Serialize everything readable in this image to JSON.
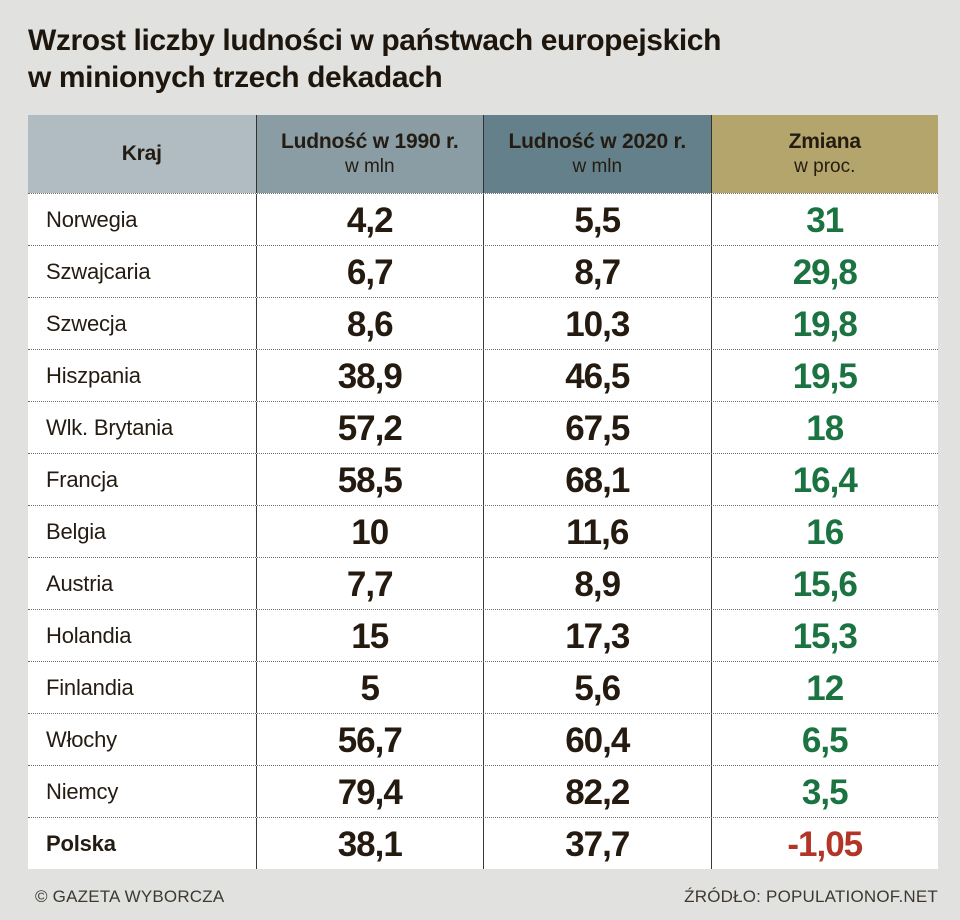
{
  "page": {
    "title_line1": "Wzrost liczby ludności w państwach europejskich",
    "title_line2": "w minionych trzech dekadach"
  },
  "colors": {
    "positive": "#1a7340",
    "negative": "#b23527",
    "header_text": "#241c12"
  },
  "table": {
    "columns": [
      {
        "label": "Kraj",
        "sub": "",
        "bg": "#b0bcc2"
      },
      {
        "label": "Ludność w 1990 r.",
        "sub": "w mln",
        "bg": "#8a9da4"
      },
      {
        "label": "Ludność w 2020 r.",
        "sub": "w mln",
        "bg": "#64808a"
      },
      {
        "label": "Zmiana",
        "sub": "w proc.",
        "bg": "#b4a56c"
      }
    ],
    "rows": [
      {
        "country": "Norwegia",
        "pop1990": "4,2",
        "pop2020": "5,5",
        "change": "31",
        "bold": false
      },
      {
        "country": "Szwajcaria",
        "pop1990": "6,7",
        "pop2020": "8,7",
        "change": "29,8",
        "bold": false
      },
      {
        "country": "Szwecja",
        "pop1990": "8,6",
        "pop2020": "10,3",
        "change": "19,8",
        "bold": false
      },
      {
        "country": "Hiszpania",
        "pop1990": "38,9",
        "pop2020": "46,5",
        "change": "19,5",
        "bold": false
      },
      {
        "country": "Wlk. Brytania",
        "pop1990": "57,2",
        "pop2020": "67,5",
        "change": "18",
        "bold": false
      },
      {
        "country": "Francja",
        "pop1990": "58,5",
        "pop2020": "68,1",
        "change": "16,4",
        "bold": false
      },
      {
        "country": "Belgia",
        "pop1990": "10",
        "pop2020": "11,6",
        "change": "16",
        "bold": false
      },
      {
        "country": "Austria",
        "pop1990": "7,7",
        "pop2020": "8,9",
        "change": "15,6",
        "bold": false
      },
      {
        "country": "Holandia",
        "pop1990": "15",
        "pop2020": "17,3",
        "change": "15,3",
        "bold": false
      },
      {
        "country": "Finlandia",
        "pop1990": "5",
        "pop2020": "5,6",
        "change": "12",
        "bold": false
      },
      {
        "country": "Włochy",
        "pop1990": "56,7",
        "pop2020": "60,4",
        "change": "6,5",
        "bold": false
      },
      {
        "country": "Niemcy",
        "pop1990": "79,4",
        "pop2020": "82,2",
        "change": "3,5",
        "bold": false
      },
      {
        "country": "Polska",
        "pop1990": "38,1",
        "pop2020": "37,7",
        "change": "-1,05",
        "bold": true
      }
    ]
  },
  "footer": {
    "copyright": "© GAZETA WYBORCZA",
    "source": "ŹRÓDŁO: POPULATIONOF.NET"
  },
  "chart_data": {
    "type": "table",
    "title": "Wzrost liczby ludności w państwach europejskich w minionych trzech dekadach",
    "columns": [
      "Kraj",
      "Ludność w 1990 r. (w mln)",
      "Ludność w 2020 r. (w mln)",
      "Zmiana (w proc.)"
    ],
    "rows": [
      [
        "Norwegia",
        4.2,
        5.5,
        31
      ],
      [
        "Szwajcaria",
        6.7,
        8.7,
        29.8
      ],
      [
        "Szwecja",
        8.6,
        10.3,
        19.8
      ],
      [
        "Hiszpania",
        38.9,
        46.5,
        19.5
      ],
      [
        "Wlk. Brytania",
        57.2,
        67.5,
        18
      ],
      [
        "Francja",
        58.5,
        68.1,
        16.4
      ],
      [
        "Belgia",
        10,
        11.6,
        16
      ],
      [
        "Austria",
        7.7,
        8.9,
        15.6
      ],
      [
        "Holandia",
        15,
        17.3,
        15.3
      ],
      [
        "Finlandia",
        5,
        5.6,
        12
      ],
      [
        "Włochy",
        56.7,
        60.4,
        6.5
      ],
      [
        "Niemcy",
        79.4,
        82.2,
        3.5
      ],
      [
        "Polska",
        38.1,
        37.7,
        -1.05
      ]
    ],
    "source": "POPULATIONOF.NET",
    "credit": "GAZETA WYBORCZA"
  }
}
